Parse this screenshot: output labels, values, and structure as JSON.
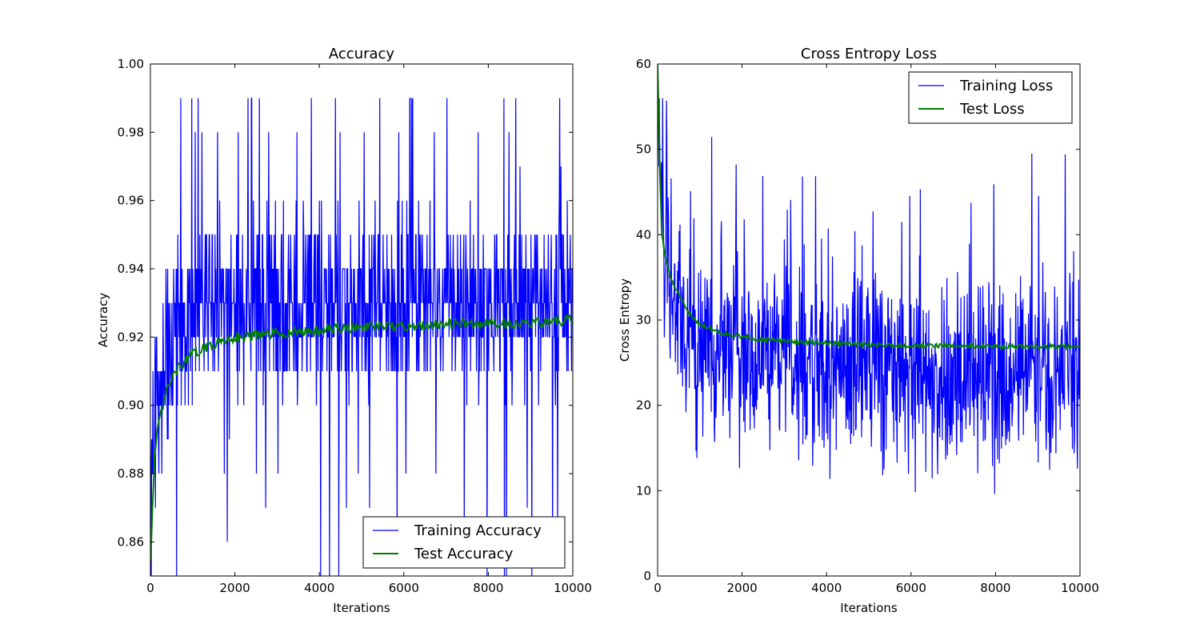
{
  "chart_data": [
    {
      "type": "line",
      "title": "Accuracy",
      "xlabel": "Iterations",
      "ylabel": "Accuracy",
      "xlim": [
        0,
        10000
      ],
      "ylim": [
        0.85,
        1.0
      ],
      "xticks": [
        "0",
        "2000",
        "4000",
        "6000",
        "8000",
        "10000"
      ],
      "yticks": [
        "0.86",
        "0.88",
        "0.90",
        "0.92",
        "0.94",
        "0.96",
        "0.98",
        "1.00"
      ],
      "legend_position": "lower-right",
      "series": [
        {
          "name": "Training Accuracy",
          "color": "#0000ff",
          "style": "noisy-discrete",
          "start": 0.89,
          "end": 0.93,
          "mean": 0.925,
          "min": 0.85,
          "max": 0.99,
          "step": 0.01,
          "x": [
            0,
            500,
            1000,
            2000,
            3000,
            4000,
            5000,
            6000,
            7000,
            8000,
            9000,
            10000
          ],
          "y": [
            0.89,
            0.92,
            0.93,
            0.93,
            0.93,
            0.93,
            0.93,
            0.93,
            0.93,
            0.93,
            0.93,
            0.93
          ]
        },
        {
          "name": "Test Accuracy",
          "color": "#008000",
          "style": "smooth",
          "x": [
            0,
            100,
            200,
            400,
            600,
            1000,
            1500,
            2000,
            3000,
            4000,
            5000,
            6000,
            7000,
            8000,
            9000,
            10000
          ],
          "y": [
            0.855,
            0.885,
            0.895,
            0.905,
            0.91,
            0.915,
            0.918,
            0.92,
            0.921,
            0.922,
            0.923,
            0.923,
            0.924,
            0.924,
            0.924,
            0.925
          ]
        }
      ]
    },
    {
      "type": "line",
      "title": "Cross Entropy Loss",
      "xlabel": "Iterations",
      "ylabel": "Cross Entropy",
      "xlim": [
        0,
        10000
      ],
      "ylim": [
        0,
        60
      ],
      "xticks": [
        "0",
        "2000",
        "4000",
        "6000",
        "8000",
        "10000"
      ],
      "yticks": [
        "0",
        "10",
        "20",
        "30",
        "40",
        "50",
        "60"
      ],
      "legend_position": "upper-right",
      "series": [
        {
          "name": "Training Loss",
          "color": "#0000ff",
          "style": "noisy-continuous",
          "start": 60,
          "mean": 25,
          "min": 8,
          "max": 56,
          "x": [
            0,
            100,
            300,
            600,
            1000,
            2000,
            3000,
            4000,
            5000,
            6000,
            7000,
            8000,
            9000,
            10000
          ],
          "y": [
            60,
            42,
            35,
            30,
            27,
            26,
            25,
            25,
            25,
            24,
            24,
            24,
            24,
            24
          ]
        },
        {
          "name": "Test Loss",
          "color": "#008000",
          "style": "smooth",
          "x": [
            0,
            50,
            100,
            200,
            300,
            500,
            700,
            1000,
            1500,
            2000,
            3000,
            4000,
            5000,
            6000,
            7000,
            8000,
            9000,
            10000
          ],
          "y": [
            60,
            48,
            40,
            37,
            35,
            33,
            31,
            29.5,
            28.5,
            28,
            27.5,
            27.3,
            27.1,
            27.0,
            27.0,
            26.9,
            26.9,
            26.9
          ]
        }
      ]
    }
  ]
}
